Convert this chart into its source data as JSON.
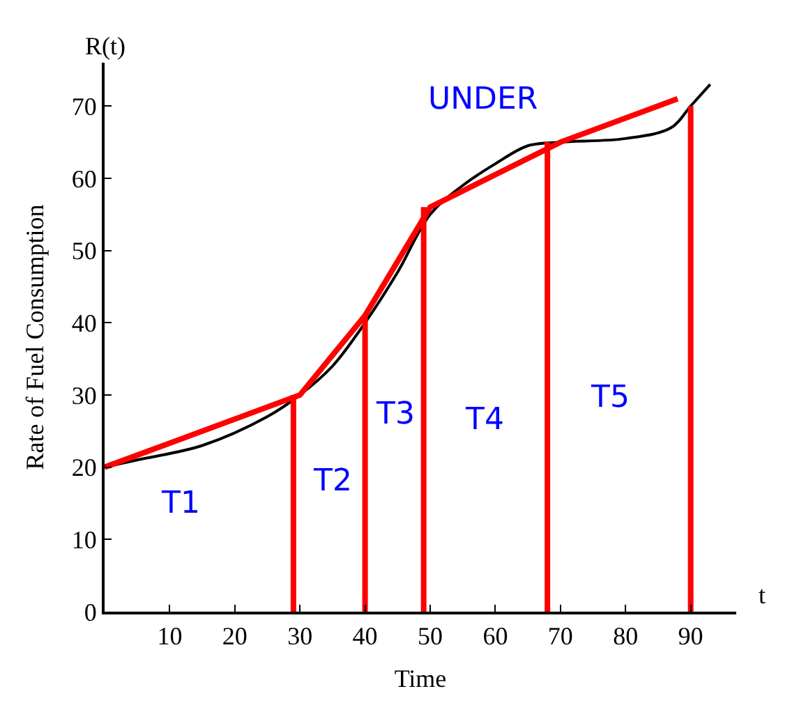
{
  "chart_data": {
    "type": "line",
    "xlabel": "Time",
    "ylabel": "Rate of Fuel Consumption",
    "xlim": [
      0,
      97
    ],
    "ylim": [
      0,
      76
    ],
    "xticks": [
      10,
      20,
      30,
      40,
      50,
      60,
      70,
      80,
      90
    ],
    "yticks": [
      0,
      10,
      20,
      30,
      40,
      50,
      60,
      70
    ],
    "series": [
      {
        "color": "#000000",
        "x": [
          0,
          5,
          15,
          25,
          30,
          35,
          40,
          45,
          50,
          55,
          60,
          65,
          70,
          80,
          87,
          90,
          93
        ],
        "values": [
          20,
          21,
          23,
          27,
          30,
          34,
          40,
          47,
          55,
          59,
          62,
          64.5,
          65,
          65.5,
          67,
          70,
          73
        ]
      },
      {
        "color": "#ff0000",
        "x": [
          0,
          30,
          40,
          50,
          70,
          88
        ],
        "values": [
          20,
          30,
          41,
          56,
          65,
          71
        ]
      },
      {
        "color": "#ff0000",
        "x": [
          29,
          29
        ],
        "values": [
          0,
          30
        ]
      },
      {
        "color": "#ff0000",
        "x": [
          40,
          40
        ],
        "values": [
          0,
          41
        ]
      },
      {
        "color": "#ff0000",
        "x": [
          49,
          49
        ],
        "values": [
          0,
          56
        ]
      },
      {
        "color": "#ff0000",
        "x": [
          68,
          68
        ],
        "values": [
          0,
          65
        ]
      },
      {
        "color": "#ff0000",
        "x": [
          90,
          90
        ],
        "values": [
          0,
          70
        ]
      }
    ],
    "annotations": [
      "R(t)",
      "t",
      "UNDER",
      "T1",
      "T2",
      "T3",
      "T4",
      "T5"
    ]
  }
}
